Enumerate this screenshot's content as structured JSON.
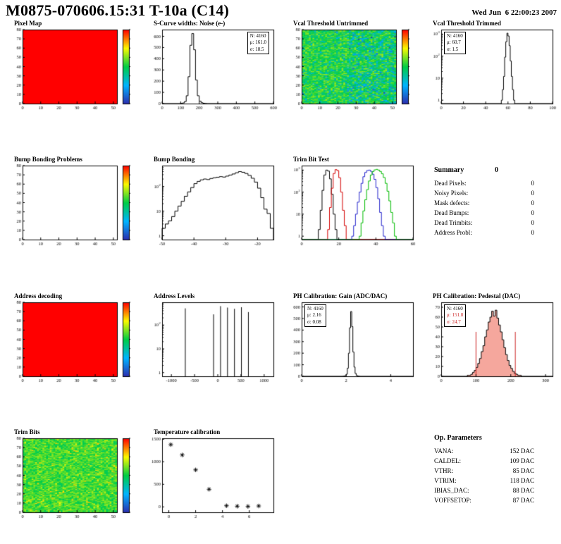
{
  "header": {
    "title": "M0875-070606.15:31 T-10a (C14)",
    "date": "Wed Jun  6 22:00:23 2007"
  },
  "summary": {
    "title": "Summary",
    "total": "0",
    "rows": [
      {
        "label": "Dead Pixels:",
        "value": "0"
      },
      {
        "label": "Noisy Pixels:",
        "value": "0"
      },
      {
        "label": "Mask defects:",
        "value": "0"
      },
      {
        "label": "Dead Bumps:",
        "value": "0"
      },
      {
        "label": "Dead Trimbits:",
        "value": "0"
      },
      {
        "label": "Address Probl:",
        "value": "0"
      }
    ]
  },
  "op_parameters": {
    "title": "Op. Parameters",
    "rows": [
      {
        "label": "VANA:",
        "value": "152 DAC"
      },
      {
        "label": "CALDEL:",
        "value": "109 DAC"
      },
      {
        "label": "VTHR:",
        "value": "85 DAC"
      },
      {
        "label": "VTRIM:",
        "value": "118 DAC"
      },
      {
        "label": "IBIAS_DAC:",
        "value": "88 DAC"
      },
      {
        "label": "VOFFSETOP:",
        "value": "87 DAC"
      }
    ]
  },
  "chart_data": [
    {
      "id": "pixel-map",
      "type": "heatmap",
      "variant": "solid",
      "title": "Pixel Map",
      "grid": {
        "row": 0,
        "col": 0
      },
      "xlim": [
        0,
        52
      ],
      "ylim": [
        0,
        80
      ],
      "xticks": [
        0,
        10,
        20,
        30,
        40,
        50
      ],
      "yticks": [
        0,
        10,
        20,
        30,
        40,
        50,
        60,
        70,
        80
      ],
      "colorbar": true
    },
    {
      "id": "scurve-noise",
      "type": "histogram",
      "title": "S-Curve widths: Noise (e-)",
      "grid": {
        "row": 0,
        "col": 1
      },
      "xlim": [
        0,
        600
      ],
      "ylim": [
        0,
        660
      ],
      "xticks": [
        0,
        100,
        200,
        300,
        400,
        500,
        600
      ],
      "yticks": [
        0,
        100,
        200,
        300,
        400,
        500,
        600
      ],
      "series": [
        {
          "color": "#000000",
          "x0": 100,
          "binWidth": 10,
          "values": [
            2,
            6,
            18,
            70,
            240,
            520,
            625,
            480,
            210,
            70,
            22,
            8,
            3,
            1
          ]
        }
      ],
      "stats": {
        "pos": "right",
        "lines": [
          {
            "text": "N: 4160",
            "color": "#000000"
          },
          {
            "text": "μ: 161.0",
            "color": "#000000"
          },
          {
            "text": "σ: 18.5",
            "color": "#000000"
          }
        ]
      }
    },
    {
      "id": "vcal-untrimmed",
      "type": "heatmap",
      "variant": "vcal-noise",
      "seed": 7,
      "title": "Vcal Threshold Untrimmed",
      "grid": {
        "row": 0,
        "col": 2
      },
      "xlim": [
        0,
        52
      ],
      "ylim": [
        0,
        80
      ],
      "xticks": [
        0,
        10,
        20,
        30,
        40,
        50
      ],
      "yticks": [
        0,
        10,
        20,
        30,
        40,
        50,
        60,
        70,
        80
      ],
      "colorbar": true
    },
    {
      "id": "vcal-trimmed",
      "type": "histogram",
      "logy": true,
      "title": "Vcal Threshold Trimmed",
      "grid": {
        "row": 0,
        "col": 3
      },
      "xlim": [
        0,
        100
      ],
      "ylim": [
        0.7,
        1600
      ],
      "xticks": [
        0,
        20,
        40,
        60,
        80,
        100
      ],
      "series": [
        {
          "color": "#000000",
          "x0": 54,
          "binWidth": 1,
          "values": [
            1,
            3,
            12,
            90,
            450,
            1100,
            820,
            300,
            60,
            12,
            3,
            1
          ]
        }
      ],
      "stats": {
        "pos": "left",
        "lines": [
          {
            "text": "N: 4160",
            "color": "#000000"
          },
          {
            "text": "μ: 60.7",
            "color": "#000000"
          },
          {
            "text": "σ: 1.5",
            "color": "#000000"
          }
        ]
      }
    },
    {
      "id": "bump-problems",
      "type": "heatmap",
      "variant": "empty",
      "title": "Bump Bonding Problems",
      "grid": {
        "row": 1,
        "col": 0
      },
      "xlim": [
        0,
        52
      ],
      "ylim": [
        0,
        80
      ],
      "xticks": [
        0,
        10,
        20,
        30,
        40,
        50
      ],
      "yticks": [
        0,
        10,
        20,
        30,
        40,
        50,
        60,
        70,
        80
      ],
      "colorbar": true
    },
    {
      "id": "bump-bonding",
      "type": "histogram",
      "logy": true,
      "title": "Bump Bonding",
      "grid": {
        "row": 1,
        "col": 1
      },
      "xlim": [
        -50,
        -15
      ],
      "ylim": [
        0.7,
        700
      ],
      "xticks": [
        -50,
        -40,
        -30,
        -20
      ],
      "series": [
        {
          "color": "#000000",
          "x0": -50,
          "binWidth": 1,
          "values": [
            2,
            3,
            4,
            6,
            10,
            16,
            25,
            40,
            60,
            90,
            130,
            160,
            185,
            200,
            190,
            210,
            225,
            235,
            250,
            240,
            262,
            290,
            320,
            360,
            400,
            375,
            335,
            280,
            215,
            150,
            85,
            35,
            12,
            8,
            2
          ]
        }
      ]
    },
    {
      "id": "trim-bit-test",
      "type": "histogram",
      "logy": true,
      "title": "Trim Bit Test",
      "grid": {
        "row": 1,
        "col": 2
      },
      "xlim": [
        0,
        60
      ],
      "ylim": [
        0.7,
        1600
      ],
      "xticks": [
        0,
        20,
        40,
        60
      ],
      "series": [
        {
          "color": "#000000",
          "x0": 9,
          "binWidth": 1,
          "values": [
            2,
            15,
            120,
            600,
            1000,
            900,
            400,
            80,
            10,
            2
          ]
        },
        {
          "color": "#d40000",
          "x0": 14,
          "binWidth": 1,
          "values": [
            2,
            20,
            150,
            700,
            1050,
            950,
            450,
            100,
            15,
            3
          ]
        },
        {
          "color": "#2222cc",
          "x0": 27,
          "binWidth": 1,
          "values": [
            1,
            3,
            10,
            35,
            100,
            250,
            500,
            780,
            950,
            1000,
            880,
            650,
            380,
            160,
            50,
            12,
            3,
            1
          ]
        },
        {
          "color": "#00bb00",
          "x0": 31,
          "binWidth": 1,
          "values": [
            1,
            4,
            14,
            45,
            130,
            320,
            600,
            850,
            1020,
            1080,
            1000,
            870,
            680,
            460,
            250,
            110,
            40,
            12,
            4,
            1
          ]
        }
      ]
    },
    {
      "id": "address-decoding",
      "type": "heatmap",
      "variant": "solid",
      "title": "Address decoding",
      "grid": {
        "row": 2,
        "col": 0
      },
      "xlim": [
        0,
        52
      ],
      "ylim": [
        0,
        80
      ],
      "xticks": [
        0,
        10,
        20,
        30,
        40,
        50
      ],
      "yticks": [
        0,
        10,
        20,
        30,
        40,
        50,
        60,
        70,
        80
      ],
      "colorbar": true
    },
    {
      "id": "address-levels",
      "type": "histogram",
      "logy": true,
      "title": "Address Levels",
      "grid": {
        "row": 2,
        "col": 1
      },
      "xlim": [
        -1200,
        1200
      ],
      "ylim": [
        0.7,
        900
      ],
      "xticks": [
        -1000,
        -500,
        0,
        500,
        1000
      ],
      "series": [
        {
          "color": "#000000",
          "spikes": [
            [
              -700,
              500
            ],
            [
              -90,
              280
            ],
            [
              60,
              620
            ],
            [
              210,
              540
            ],
            [
              360,
              480
            ],
            [
              510,
              560
            ],
            [
              660,
              350
            ]
          ]
        }
      ]
    },
    {
      "id": "ph-gain",
      "type": "histogram",
      "title": "PH Calibration: Gain (ADC/DAC)",
      "grid": {
        "row": 2,
        "col": 2
      },
      "xlim": [
        0,
        5
      ],
      "ylim": [
        0,
        640
      ],
      "xticks": [
        0,
        2,
        4
      ],
      "yticks": [
        0,
        100,
        200,
        300,
        400,
        500,
        600
      ],
      "series": [
        {
          "color": "#000000",
          "x0": 1.85,
          "binWidth": 0.05,
          "values": [
            1,
            2,
            6,
            18,
            70,
            200,
            420,
            560,
            430,
            210,
            80,
            25,
            8,
            3,
            1
          ]
        }
      ],
      "stats": {
        "pos": "left",
        "lines": [
          {
            "text": "N: 4160",
            "color": "#000000"
          },
          {
            "text": "μ: 2.16",
            "color": "#000000"
          },
          {
            "text": "σ: 0.08",
            "color": "#000000"
          }
        ]
      }
    },
    {
      "id": "ph-pedestal",
      "type": "histogram",
      "title": "PH Calibration: Pedestal (DAC)",
      "grid": {
        "row": 2,
        "col": 3
      },
      "xlim": [
        0,
        320
      ],
      "ylim": [
        0,
        75
      ],
      "xticks": [
        0,
        100,
        200,
        300
      ],
      "yticks": [
        0,
        10,
        20,
        30,
        40,
        50,
        60,
        70
      ],
      "series": [
        {
          "color": "#000000",
          "fill": "rgba(235,80,60,0.5)",
          "x0": 75,
          "binWidth": 5,
          "values": [
            1,
            1,
            2,
            4,
            6,
            9,
            13,
            18,
            25,
            31,
            40,
            47,
            55,
            60,
            66,
            61,
            67,
            59,
            52,
            45,
            37,
            29,
            22,
            16,
            11,
            8,
            5,
            3,
            2,
            1,
            1
          ]
        }
      ],
      "vlines": [
        {
          "x": 100,
          "y": 45,
          "color": "#cc2222"
        },
        {
          "x": 213,
          "y": 45,
          "color": "#cc2222"
        }
      ],
      "stats": {
        "pos": "left",
        "lines": [
          {
            "text": "N: 4160",
            "color": "#000000"
          },
          {
            "text": "μ: 151.8",
            "color": "#cc2222"
          },
          {
            "text": "σ: 24.7",
            "color": "#cc2222"
          }
        ]
      }
    },
    {
      "id": "trim-bits",
      "type": "heatmap",
      "variant": "green-noise",
      "seed": 13,
      "title": "Trim Bits",
      "grid": {
        "row": 3,
        "col": 0
      },
      "xlim": [
        0,
        52
      ],
      "ylim": [
        0,
        80
      ],
      "xticks": [
        0,
        10,
        20,
        30,
        40,
        50
      ],
      "yticks": [
        0,
        10,
        20,
        30,
        40,
        50,
        60,
        70,
        80
      ],
      "colorbar": true
    },
    {
      "id": "temperature-calibration",
      "type": "scatter",
      "title": "Temperature calibration",
      "grid": {
        "row": 3,
        "col": 1
      },
      "xlim": [
        -0.5,
        7.8
      ],
      "ylim": [
        -120,
        1520
      ],
      "xticks": [
        0,
        2,
        4,
        6
      ],
      "yticks": [
        0,
        500,
        1000,
        1500
      ],
      "marker": "asterisk",
      "color": "#000000",
      "points": {
        "x": [
          0.15,
          1,
          2,
          3,
          4.3,
          5.1,
          5.9,
          6.7
        ],
        "y": [
          1380,
          1150,
          820,
          390,
          25,
          15,
          10,
          20
        ]
      }
    }
  ]
}
